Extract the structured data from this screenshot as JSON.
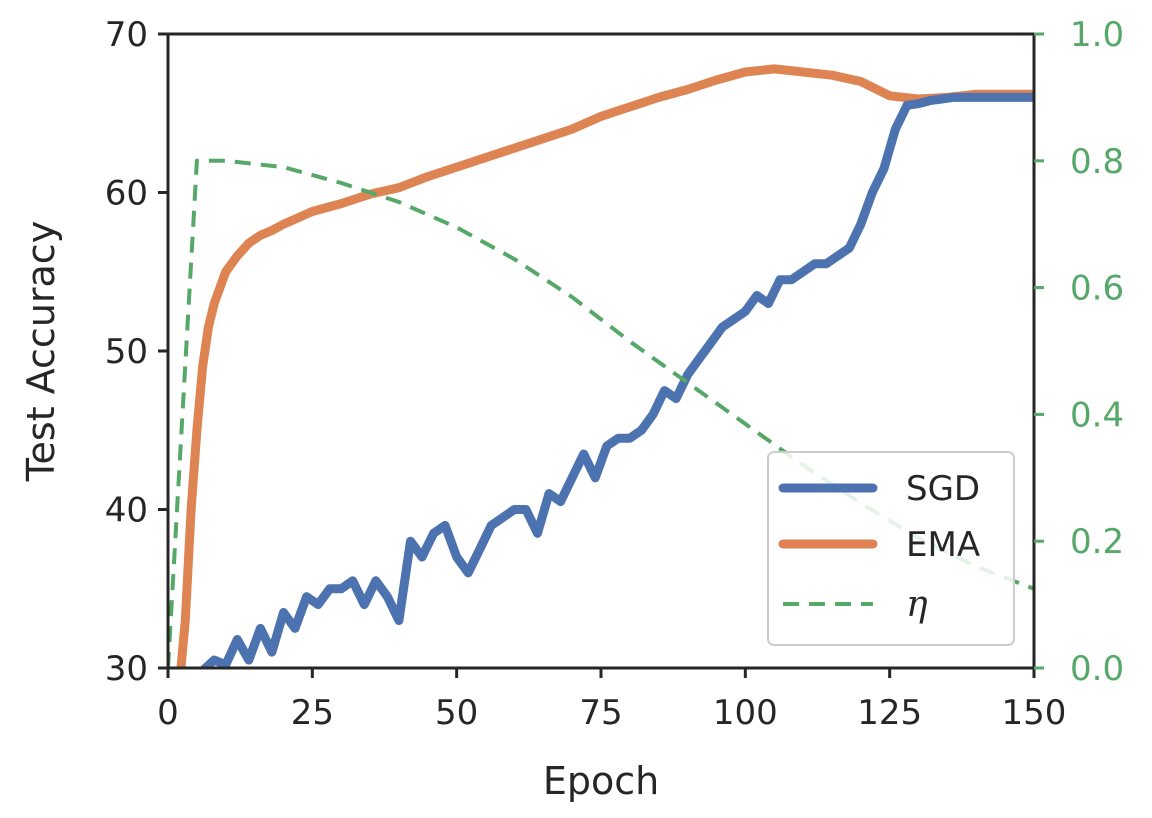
{
  "chart_data": {
    "type": "line",
    "title": "",
    "xlabel": "Epoch",
    "ylabel": "Test Accuracy",
    "y2label": "",
    "xlim": [
      0,
      150
    ],
    "ylim": [
      30,
      70
    ],
    "y2lim": [
      0.0,
      1.0
    ],
    "x_ticks": [
      "0",
      "25",
      "50",
      "75",
      "100",
      "125",
      "150"
    ],
    "y_ticks": [
      "30",
      "40",
      "50",
      "60",
      "70"
    ],
    "y2_ticks": [
      "0.0",
      "0.2",
      "0.4",
      "0.6",
      "0.8",
      "1.0"
    ],
    "grid": false,
    "legend_position": "lower-right",
    "right_axis_color": "#55a868",
    "series": [
      {
        "name": "SGD",
        "axis": "left",
        "color": "#4c72b0",
        "style": "solid",
        "x": [
          0,
          5,
          8,
          10,
          12,
          14,
          16,
          18,
          20,
          22,
          24,
          26,
          28,
          30,
          32,
          34,
          36,
          38,
          40,
          42,
          44,
          46,
          48,
          50,
          52,
          54,
          56,
          58,
          60,
          62,
          64,
          66,
          68,
          70,
          72,
          74,
          76,
          78,
          80,
          82,
          84,
          86,
          88,
          90,
          92,
          94,
          96,
          98,
          100,
          102,
          104,
          106,
          108,
          110,
          112,
          114,
          116,
          118,
          120,
          122,
          124,
          126,
          128,
          130,
          132,
          134,
          136,
          138,
          140,
          142,
          144,
          146,
          148,
          150
        ],
        "values": [
          29,
          29.5,
          30.5,
          30.2,
          31.8,
          30.5,
          32.5,
          31,
          33.5,
          32.5,
          34.5,
          34,
          35,
          35,
          35.5,
          34,
          35.5,
          34.5,
          33,
          38,
          37,
          38.5,
          39,
          37,
          36,
          37.5,
          39,
          39.5,
          40,
          40,
          38.5,
          41,
          40.5,
          42,
          43.5,
          42,
          44,
          44.5,
          44.5,
          45,
          46,
          47.5,
          47,
          48.5,
          49.5,
          50.5,
          51.5,
          52,
          52.5,
          53.5,
          53,
          54.5,
          54.5,
          55,
          55.5,
          55.5,
          56,
          56.5,
          58,
          60,
          61.5,
          64,
          65.5,
          65.6,
          65.8,
          65.9,
          66,
          66,
          66,
          66,
          66,
          66,
          66,
          66
        ]
      },
      {
        "name": "EMA",
        "axis": "left",
        "color": "#dd8452",
        "style": "solid",
        "x": [
          0,
          2,
          3,
          4,
          5,
          6,
          7,
          8,
          10,
          12,
          14,
          16,
          18,
          20,
          25,
          30,
          35,
          40,
          45,
          50,
          55,
          60,
          65,
          70,
          75,
          80,
          85,
          90,
          95,
          100,
          105,
          110,
          115,
          120,
          125,
          130,
          135,
          140,
          145,
          150
        ],
        "values": [
          28,
          29,
          33,
          40,
          45,
          49,
          51.5,
          53,
          55,
          56,
          56.8,
          57.3,
          57.6,
          58,
          58.8,
          59.3,
          59.9,
          60.3,
          61,
          61.6,
          62.2,
          62.8,
          63.4,
          64,
          64.8,
          65.4,
          66,
          66.5,
          67.1,
          67.6,
          67.8,
          67.6,
          67.4,
          67,
          66.1,
          65.9,
          66,
          66.2,
          66.2,
          66.2
        ]
      },
      {
        "name": "η",
        "axis": "right",
        "color": "#55a868",
        "style": "dashed",
        "x": [
          0,
          5,
          10,
          20,
          30,
          40,
          50,
          60,
          70,
          80,
          90,
          100,
          110,
          120,
          130,
          140,
          150
        ],
        "values": [
          0.0,
          0.8,
          0.8,
          0.79,
          0.765,
          0.735,
          0.695,
          0.645,
          0.585,
          0.515,
          0.45,
          0.385,
          0.32,
          0.26,
          0.205,
          0.16,
          0.125
        ]
      }
    ]
  }
}
